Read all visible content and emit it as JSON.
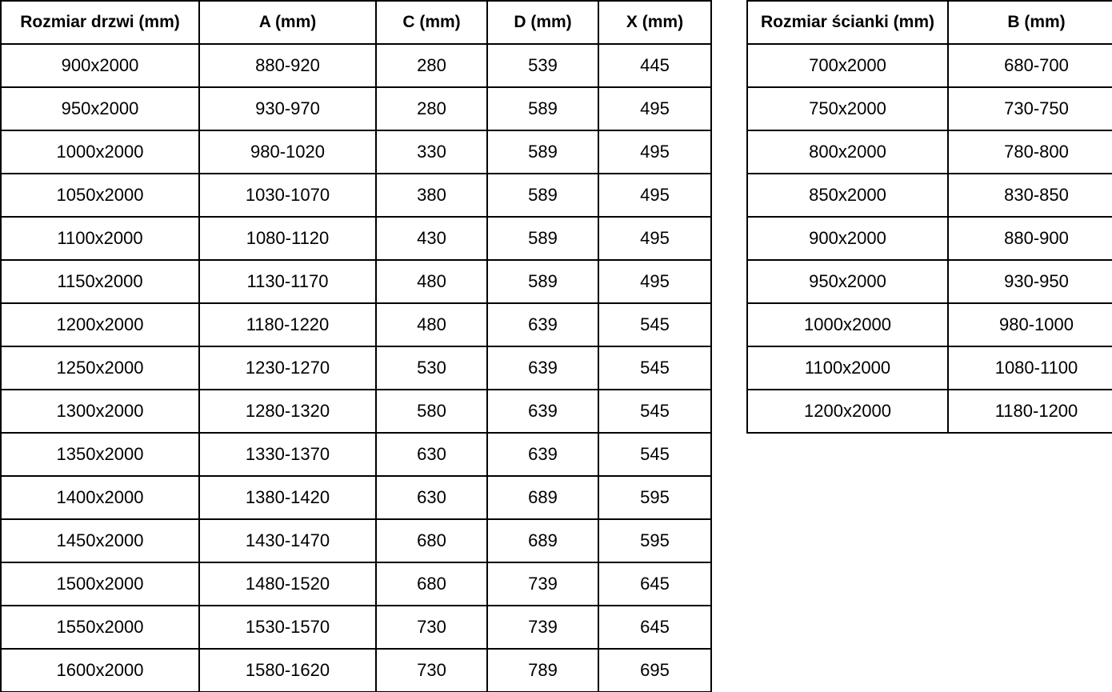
{
  "colors": {
    "background": "#ffffff",
    "border": "#000000",
    "text": "#000000"
  },
  "door_table": {
    "headers": [
      "Rozmiar drzwi (mm)",
      "A (mm)",
      "C (mm)",
      "D (mm)",
      "X (mm)"
    ],
    "rows": [
      [
        "900x2000",
        "880-920",
        "280",
        "539",
        "445"
      ],
      [
        "950x2000",
        "930-970",
        "280",
        "589",
        "495"
      ],
      [
        "1000x2000",
        "980-1020",
        "330",
        "589",
        "495"
      ],
      [
        "1050x2000",
        "1030-1070",
        "380",
        "589",
        "495"
      ],
      [
        "1100x2000",
        "1080-1120",
        "430",
        "589",
        "495"
      ],
      [
        "1150x2000",
        "1130-1170",
        "480",
        "589",
        "495"
      ],
      [
        "1200x2000",
        "1180-1220",
        "480",
        "639",
        "545"
      ],
      [
        "1250x2000",
        "1230-1270",
        "530",
        "639",
        "545"
      ],
      [
        "1300x2000",
        "1280-1320",
        "580",
        "639",
        "545"
      ],
      [
        "1350x2000",
        "1330-1370",
        "630",
        "639",
        "545"
      ],
      [
        "1400x2000",
        "1380-1420",
        "630",
        "689",
        "595"
      ],
      [
        "1450x2000",
        "1430-1470",
        "680",
        "689",
        "595"
      ],
      [
        "1500x2000",
        "1480-1520",
        "680",
        "739",
        "645"
      ],
      [
        "1550x2000",
        "1530-1570",
        "730",
        "739",
        "645"
      ],
      [
        "1600x2000",
        "1580-1620",
        "730",
        "789",
        "695"
      ]
    ]
  },
  "wall_table": {
    "headers": [
      "Rozmiar ścianki (mm)",
      "B (mm)"
    ],
    "rows": [
      [
        "700x2000",
        "680-700"
      ],
      [
        "750x2000",
        "730-750"
      ],
      [
        "800x2000",
        "780-800"
      ],
      [
        "850x2000",
        "830-850"
      ],
      [
        "900x2000",
        "880-900"
      ],
      [
        "950x2000",
        "930-950"
      ],
      [
        "1000x2000",
        "980-1000"
      ],
      [
        "1100x2000",
        "1080-1100"
      ],
      [
        "1200x2000",
        "1180-1200"
      ]
    ]
  }
}
